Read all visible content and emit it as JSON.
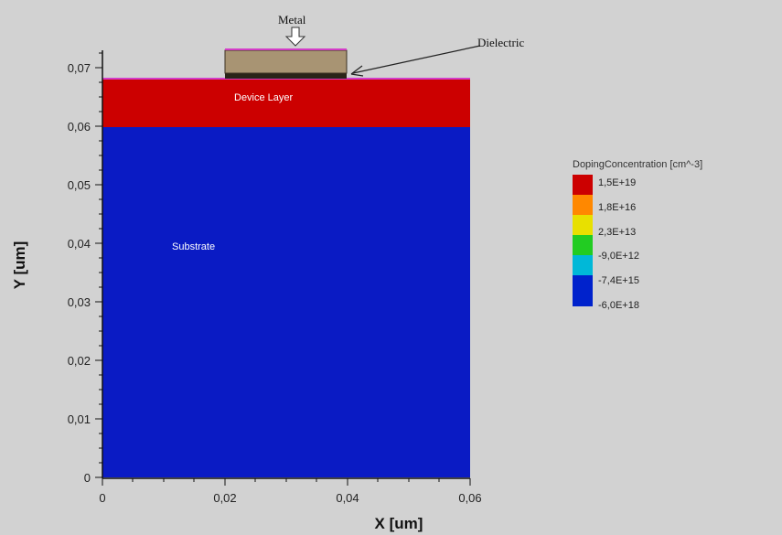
{
  "axes": {
    "x_label": "X [um]",
    "y_label": "Y [um]",
    "x_ticks": [
      "0",
      "0,02",
      "0,04",
      "0,06"
    ],
    "y_ticks": [
      "0",
      "0,01",
      "0,02",
      "0,03",
      "0,04",
      "0,05",
      "0,06",
      "0,07"
    ]
  },
  "regions": {
    "substrate": {
      "label": "Substrate",
      "color": "#0a1bc4"
    },
    "device_layer": {
      "label": "Device Layer",
      "color": "#cc0000"
    },
    "dielectric_color": "#2a2418",
    "metal_color": "#a89473",
    "metal_edge_color": "#d43cc8"
  },
  "annotations": {
    "metal": "Metal",
    "dielectric": "Dielectric"
  },
  "legend": {
    "title": "DopingConcentration [cm^-3]",
    "ticks": [
      "1,5E+19",
      "1,8E+16",
      "2,3E+13",
      "-9,0E+12",
      "-7,4E+15",
      "-6,0E+18"
    ],
    "colors": [
      "#cc0000",
      "#ff8800",
      "#e8e000",
      "#22cc22",
      "#00b8d8",
      "#0022cc"
    ]
  },
  "colors": {
    "background": "#d2d2d2",
    "axis": "#111111"
  }
}
